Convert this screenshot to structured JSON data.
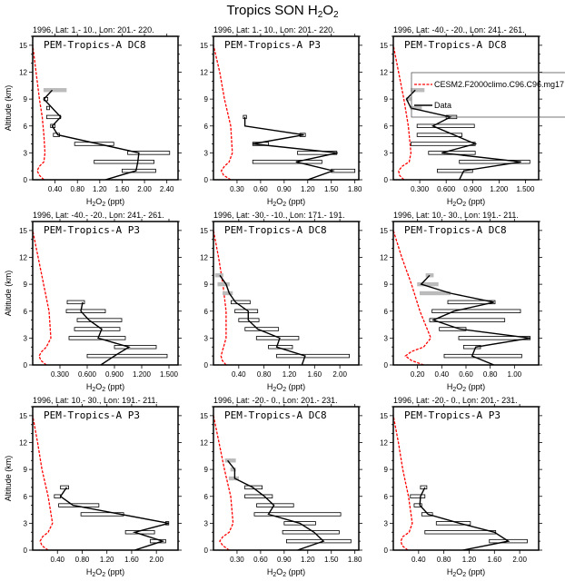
{
  "chart_data": {
    "type": "line",
    "title": {
      "pre": "Tropics SON H",
      "s1": "2",
      "mid": "O",
      "s2": "2"
    },
    "xlabel": {
      "a": "H",
      "s1": "2",
      "b": "O",
      "s2": "2",
      "c": " (ppt)"
    },
    "ylabel": "Altitude (km)",
    "ylim": [
      0,
      16
    ],
    "yticks": [
      0,
      3,
      6,
      9,
      12,
      15
    ],
    "colors": {
      "model": "#ff0000",
      "data": "#000000",
      "bar_gray": "#bbbbbb"
    },
    "legend": {
      "placement": "inside panel 3, top-right",
      "model": "CESM2.F2000climo.C96.C96.mg17",
      "data": "Data"
    },
    "panels": [
      {
        "subtitle": "1996, Lat: 1.- 10., Lon: 201.- 220.",
        "label": "PEM-Tropics-A DC8",
        "xlim": [
          0,
          2.6
        ],
        "xticks": [
          0.4,
          0.8,
          1.2,
          1.6,
          2.0,
          2.4
        ],
        "tick_labels": [
          "0.40",
          "0.80",
          "1.20",
          "1.60",
          "2.00",
          "2.40"
        ],
        "data": {
          "alt": [
            0,
            1,
            2,
            3,
            5,
            6,
            7,
            9,
            10
          ],
          "value": [
            1.3,
            1.85,
            1.88,
            1.9,
            0.45,
            0.35,
            0.5,
            0.2,
            0.35
          ]
        },
        "bars": [
          [
            1,
            1.6,
            2.2,
            0
          ],
          [
            2,
            1.1,
            2.17,
            0
          ],
          [
            3,
            1.7,
            2.45,
            0
          ],
          [
            4,
            0.75,
            1.45,
            0
          ],
          [
            5,
            0.37,
            0.48,
            0
          ],
          [
            6,
            0.32,
            0.4,
            0
          ],
          [
            7,
            0.25,
            0.5,
            0
          ],
          [
            8,
            0.25,
            0.3,
            0
          ],
          [
            9,
            0.2,
            0.27,
            0
          ],
          [
            10,
            0.2,
            0.6,
            1
          ]
        ],
        "model": {
          "alt": [
            0,
            0.5,
            1,
            1.5,
            2,
            3,
            5,
            7,
            9,
            12,
            15
          ],
          "value": [
            0.2,
            0.12,
            0.08,
            0.12,
            0.2,
            0.22,
            0.2,
            0.17,
            0.12,
            0.06,
            0.0
          ]
        }
      },
      {
        "subtitle": "1996, Lat: 1.- 10., Lon: 201.- 220.",
        "label": "PEM-Tropics-A P3",
        "xlim": [
          0,
          1.85
        ],
        "xticks": [
          0.3,
          0.6,
          0.9,
          1.2,
          1.5,
          1.8
        ],
        "tick_labels": [
          "0.30",
          "0.60",
          "0.90",
          "1.20",
          "1.50",
          "1.80"
        ],
        "data": {
          "alt": [
            0,
            1,
            2,
            3,
            4,
            5,
            6,
            7
          ],
          "value": [
            1.2,
            1.52,
            1.05,
            1.58,
            0.5,
            1.15,
            0.4,
            0.4
          ]
        },
        "bars": [
          [
            1,
            1.5,
            1.8,
            0
          ],
          [
            2,
            0.5,
            1.38,
            0
          ],
          [
            3,
            1.07,
            1.57,
            0
          ],
          [
            4,
            0.5,
            0.7,
            0
          ],
          [
            5,
            1.1,
            1.17,
            0
          ],
          [
            7,
            0.38,
            0.42,
            0
          ]
        ],
        "model": {
          "alt": [
            0,
            0.5,
            1,
            1.5,
            2,
            3,
            6,
            9,
            12,
            15
          ],
          "value": [
            0.22,
            0.13,
            0.1,
            0.14,
            0.2,
            0.24,
            0.22,
            0.14,
            0.08,
            0.0
          ]
        }
      },
      {
        "subtitle": "1996, Lat: -40.- -20., Lon: 241.- 261.",
        "label": "PEM-Tropics-A DC8",
        "xlim": [
          0,
          1.65
        ],
        "xticks": [
          0.3,
          0.6,
          0.9,
          1.2,
          1.5
        ],
        "tick_labels": [
          "0.300",
          "0.600",
          "0.900",
          "1.200",
          "1.500"
        ],
        "data": {
          "alt": [
            0,
            1,
            2,
            3,
            4,
            6,
            7,
            8,
            9,
            10
          ],
          "value": [
            0.75,
            0.8,
            1.45,
            0.55,
            0.93,
            0.45,
            0.65,
            0.2,
            0.15,
            0.25
          ]
        },
        "bars": [
          [
            1,
            0.5,
            0.9,
            0
          ],
          [
            2,
            0.75,
            1.55,
            0
          ],
          [
            3,
            0.4,
            0.93,
            0
          ],
          [
            4,
            0.2,
            0.93,
            0
          ],
          [
            5,
            0.27,
            0.78,
            0
          ],
          [
            6,
            0.27,
            0.92,
            0
          ],
          [
            7,
            0.6,
            0.72,
            0
          ],
          [
            8,
            0.2,
            0.32,
            1
          ],
          [
            9,
            0.15,
            0.2,
            1
          ],
          [
            10,
            0.2,
            0.35,
            1
          ]
        ],
        "model": {
          "alt": [
            0,
            0.5,
            1,
            1.5,
            2,
            3,
            6,
            9,
            12,
            15
          ],
          "value": [
            0.12,
            0.07,
            0.06,
            0.1,
            0.18,
            0.2,
            0.17,
            0.12,
            0.06,
            0.0
          ]
        }
      },
      {
        "subtitle": "1996, Lat: -40.- -20., Lon: 241.- 261.",
        "label": "PEM-Tropics-A P3",
        "xlim": [
          0,
          1.6
        ],
        "xticks": [
          0.3,
          0.6,
          0.9,
          1.2,
          1.5
        ],
        "tick_labels": [
          "0.300",
          "0.600",
          "0.900",
          "1.200",
          "1.500"
        ],
        "data": {
          "alt": [
            0,
            1,
            2,
            3,
            4,
            5,
            6,
            7
          ],
          "value": [
            0.75,
            0.9,
            1.06,
            0.72,
            0.76,
            0.62,
            0.53,
            0.55
          ]
        },
        "bars": [
          [
            1,
            0.6,
            1.48,
            0
          ],
          [
            2,
            0.9,
            1.36,
            0
          ],
          [
            3,
            0.4,
            1.02,
            0
          ],
          [
            4,
            0.46,
            0.96,
            0
          ],
          [
            5,
            0.49,
            0.98,
            0
          ],
          [
            6,
            0.37,
            0.8,
            0
          ],
          [
            7,
            0.38,
            0.57,
            0
          ]
        ],
        "model": {
          "alt": [
            0,
            0.5,
            1,
            1.5,
            2,
            3,
            6,
            9,
            12,
            15
          ],
          "value": [
            0.15,
            0.09,
            0.07,
            0.1,
            0.15,
            0.2,
            0.18,
            0.12,
            0.06,
            0.0
          ]
        }
      },
      {
        "subtitle": "1996, Lat: -30.- -10., Lon: 171.- 191.",
        "label": "PEM-Tropics-A DC8",
        "xlim": [
          0,
          2.3
        ],
        "xticks": [
          0.4,
          0.8,
          1.2,
          1.6,
          2.0
        ],
        "tick_labels": [
          "0.40",
          "0.80",
          "1.20",
          "1.60",
          "2.00"
        ],
        "data": {
          "alt": [
            0,
            1,
            2,
            3,
            4,
            5,
            6,
            7,
            8,
            9,
            10
          ],
          "value": [
            1.4,
            1.45,
            1.0,
            1.05,
            0.7,
            0.55,
            0.55,
            0.35,
            0.25,
            0.2,
            0.1
          ]
        },
        "bars": [
          [
            1,
            1.0,
            2.15,
            0
          ],
          [
            2,
            0.87,
            1.25,
            0
          ],
          [
            3,
            0.68,
            1.35,
            0
          ],
          [
            4,
            0.5,
            1.03,
            0
          ],
          [
            5,
            0.4,
            0.72,
            0
          ],
          [
            6,
            0.34,
            0.7,
            0
          ],
          [
            7,
            0.28,
            0.58,
            0
          ],
          [
            8,
            0.15,
            0.3,
            1
          ],
          [
            9,
            0.07,
            0.25,
            1
          ],
          [
            10,
            0.03,
            0.15,
            1
          ]
        ],
        "model": {
          "alt": [
            0,
            0.5,
            1,
            1.5,
            2,
            3,
            6,
            9,
            12,
            15
          ],
          "value": [
            0.2,
            0.14,
            0.12,
            0.14,
            0.16,
            0.2,
            0.2,
            0.15,
            0.08,
            0.0
          ]
        }
      },
      {
        "subtitle": "1996, Lat: 10.- 30., Lon: 191.- 211.",
        "label": "PEM-Tropics-A DC8",
        "xlim": [
          0,
          1.2
        ],
        "xticks": [
          0.2,
          0.4,
          0.6,
          0.8,
          1.0
        ],
        "tick_labels": [
          "0.20",
          "0.40",
          "0.60",
          "0.80",
          "1.00"
        ],
        "data": {
          "alt": [
            0,
            1,
            2,
            3,
            4,
            5,
            6,
            7,
            8,
            9,
            10
          ],
          "value": [
            0.83,
            0.65,
            0.68,
            1.13,
            0.55,
            0.33,
            0.5,
            0.83,
            0.47,
            0.23,
            0.3
          ]
        },
        "bars": [
          [
            1,
            0.42,
            1.06,
            0
          ],
          [
            2,
            0.58,
            0.72,
            0
          ],
          [
            3,
            0.54,
            1.13,
            0
          ],
          [
            4,
            0.38,
            0.6,
            0
          ],
          [
            5,
            0.3,
            0.92,
            0
          ],
          [
            6,
            0.32,
            1.05,
            0
          ],
          [
            7,
            0.45,
            0.84,
            0
          ],
          [
            8,
            0.22,
            0.47,
            1
          ],
          [
            9,
            0.2,
            0.37,
            1
          ],
          [
            10,
            0.27,
            0.33,
            1
          ]
        ],
        "model": {
          "alt": [
            0,
            0.5,
            1,
            1.5,
            2,
            3,
            4,
            6,
            9,
            12,
            15
          ],
          "value": [
            0.25,
            0.15,
            0.1,
            0.15,
            0.25,
            0.31,
            0.28,
            0.22,
            0.15,
            0.07,
            0.0
          ]
        }
      },
      {
        "subtitle": "1996, Lat: 10.- 30., Lon: 191.- 211.",
        "label": "PEM-Tropics-A P3",
        "xlim": [
          0,
          2.35
        ],
        "xticks": [
          0.4,
          0.8,
          1.2,
          1.6,
          2.0
        ],
        "tick_labels": [
          "0.40",
          "0.80",
          "1.20",
          "1.60",
          "2.00"
        ],
        "data": {
          "alt": [
            0,
            1,
            2,
            3,
            5,
            6,
            7
          ],
          "value": [
            1.65,
            2.1,
            1.65,
            2.2,
            0.65,
            0.45,
            0.55
          ]
        },
        "bars": [
          [
            1,
            1.9,
            2.15,
            0
          ],
          [
            2,
            1.5,
            1.97,
            0
          ],
          [
            3,
            2.15,
            2.2,
            0
          ],
          [
            4,
            0.78,
            1.47,
            0
          ],
          [
            5,
            0.42,
            1.07,
            0
          ],
          [
            6,
            0.35,
            0.45,
            0
          ],
          [
            7,
            0.45,
            0.58,
            0
          ]
        ],
        "model": {
          "alt": [
            0,
            0.5,
            1,
            1.5,
            2,
            3,
            6,
            9,
            12,
            15
          ],
          "value": [
            0.25,
            0.15,
            0.12,
            0.16,
            0.25,
            0.32,
            0.25,
            0.15,
            0.08,
            0.0
          ]
        }
      },
      {
        "subtitle": "1996, Lat: -20.- 0., Lon: 201.- 231.",
        "label": "PEM-Tropics-A DC8",
        "xlim": [
          0,
          1.85
        ],
        "xticks": [
          0.3,
          0.6,
          0.9,
          1.2,
          1.5,
          1.8
        ],
        "tick_labels": [
          "0.30",
          "0.60",
          "0.90",
          "1.20",
          "1.50",
          "1.80"
        ],
        "data": {
          "alt": [
            0,
            1,
            2,
            3,
            4,
            5,
            6,
            7,
            8,
            9,
            10
          ],
          "value": [
            1.07,
            1.4,
            1.28,
            1.1,
            0.7,
            0.77,
            0.65,
            0.5,
            0.27,
            0.27,
            0.18
          ]
        },
        "bars": [
          [
            1,
            0.93,
            1.75,
            0
          ],
          [
            2,
            0.88,
            1.6,
            0
          ],
          [
            3,
            0.9,
            1.3,
            0
          ],
          [
            4,
            0.52,
            1.62,
            0
          ],
          [
            5,
            0.55,
            1.02,
            0
          ],
          [
            6,
            0.4,
            0.75,
            0
          ],
          [
            7,
            0.4,
            0.62,
            0
          ],
          [
            8,
            0.2,
            0.32,
            1
          ],
          [
            9,
            0.22,
            0.28,
            1
          ],
          [
            10,
            0.15,
            0.28,
            1
          ]
        ],
        "model": {
          "alt": [
            0,
            0.5,
            1,
            1.5,
            2,
            3,
            6,
            9,
            12,
            15
          ],
          "value": [
            0.2,
            0.12,
            0.08,
            0.12,
            0.2,
            0.25,
            0.22,
            0.14,
            0.07,
            0.0
          ]
        }
      },
      {
        "subtitle": "1996, Lat: -20.- 0., Lon: 201.- 231.",
        "label": "PEM-Tropics-A P3",
        "xlim": [
          0,
          2.3
        ],
        "xticks": [
          0.4,
          0.8,
          1.2,
          1.6,
          2.0
        ],
        "tick_labels": [
          "0.40",
          "0.80",
          "1.20",
          "1.60",
          "2.00"
        ],
        "data": {
          "alt": [
            0,
            1,
            2,
            3,
            4,
            5,
            6,
            7
          ],
          "value": [
            1.1,
            1.82,
            1.6,
            1.05,
            0.55,
            0.42,
            0.43,
            0.5
          ]
        },
        "bars": [
          [
            1,
            1.52,
            2.12,
            0
          ],
          [
            2,
            0.5,
            1.62,
            0
          ],
          [
            3,
            0.68,
            1.22,
            0
          ],
          [
            4,
            0.45,
            0.62,
            0
          ],
          [
            5,
            0.33,
            0.45,
            0
          ],
          [
            6,
            0.27,
            0.5,
            0
          ],
          [
            7,
            0.43,
            0.53,
            0
          ]
        ],
        "model": {
          "alt": [
            0,
            0.5,
            1,
            1.5,
            2,
            3,
            6,
            9,
            12,
            15
          ],
          "value": [
            0.23,
            0.14,
            0.12,
            0.15,
            0.25,
            0.3,
            0.24,
            0.15,
            0.08,
            0.0
          ]
        }
      }
    ]
  }
}
